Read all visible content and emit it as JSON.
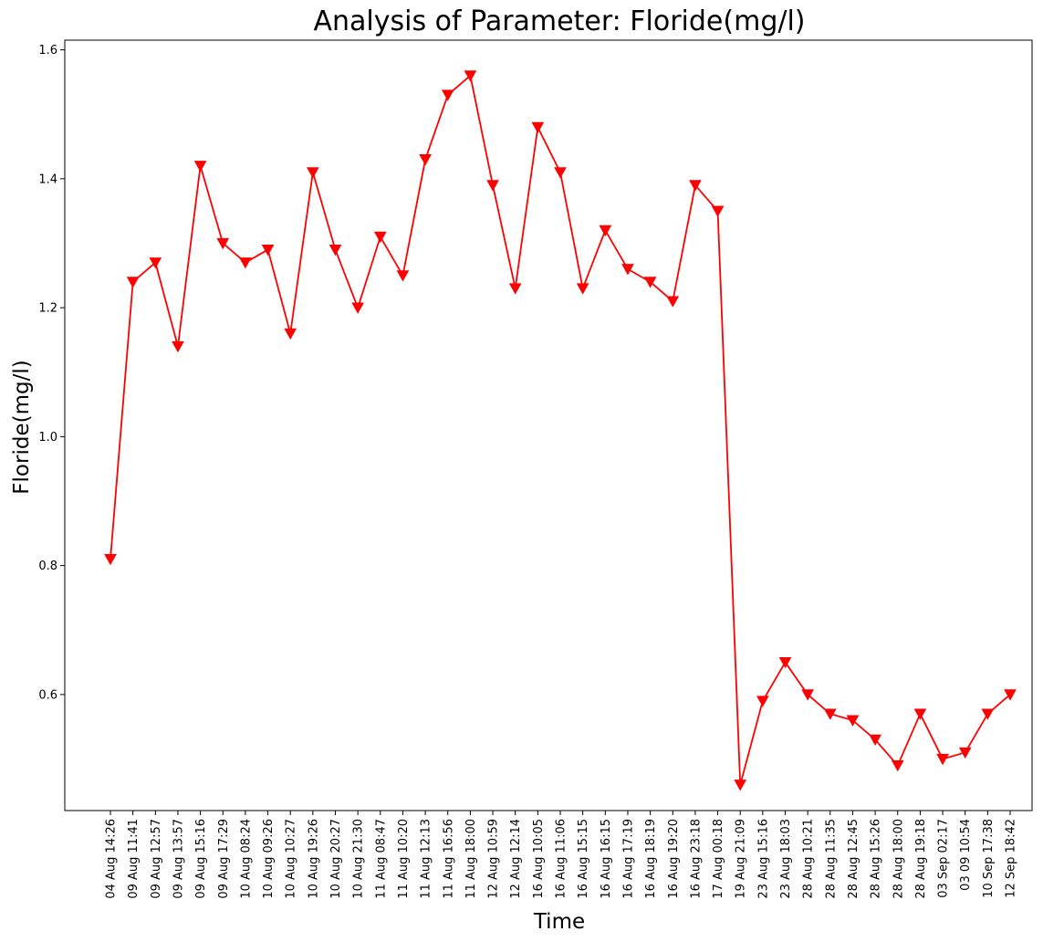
{
  "chart_data": {
    "type": "line",
    "title": "Analysis of Parameter: Floride(mg/l)",
    "xlabel": "Time",
    "ylabel": "Floride(mg/l)",
    "ylim": [
      0.42,
      1.615
    ],
    "yticks": [
      "0.6",
      "0.8",
      "1.0",
      "1.2",
      "1.4",
      "1.6"
    ],
    "grid": false,
    "legend": "none",
    "series_color": "#ff0000",
    "marker": "triangle-down",
    "categories": [
      "04 Aug 14:26",
      "09 Aug 11:41",
      "09 Aug 12:57",
      "09 Aug 13:57",
      "09 Aug 15:16",
      "09 Aug 17:29",
      "10 Aug 08:24",
      "10 Aug 09:26",
      "10 Aug 10:27",
      "10 Aug 19:26",
      "10 Aug 20:27",
      "10 Aug 21:30",
      "11 Aug 08:47",
      "11 Aug 10:20",
      "11 Aug 12:13",
      "11 Aug 16:56",
      "11 Aug 18:00",
      "12 Aug 10:59",
      "12 Aug 12:14",
      "16 Aug 10:05",
      "16 Aug 11:06",
      "16 Aug 15:15",
      "16 Aug 16:15",
      "16 Aug 17:19",
      "16 Aug 18:19",
      "16 Aug 19:20",
      "16 Aug 23:18",
      "17 Aug 00:18",
      "19 Aug 21:09",
      "23 Aug 15:16",
      "23 Aug 18:03",
      "28 Aug 10:21",
      "28 Aug 11:35",
      "28 Aug 12:45",
      "28 Aug 15:26",
      "28 Aug 18:00",
      "28 Aug 19:18",
      "03 Sep 02:17",
      "03 09 10:54",
      "10 Sep 17:38",
      "12 Sep 18:42"
    ],
    "series": [
      {
        "values": [
          0.81,
          1.24,
          1.27,
          1.14,
          1.42,
          1.3,
          1.27,
          1.29,
          1.16,
          1.41,
          1.29,
          1.2,
          1.31,
          1.25,
          1.43,
          1.53,
          1.56,
          1.39,
          1.23,
          1.48,
          1.41,
          1.23,
          1.32,
          1.26,
          1.24,
          1.21,
          1.39,
          1.35,
          0.46,
          0.59,
          0.65,
          0.6,
          0.57,
          0.56,
          0.53,
          0.49,
          0.57,
          0.5,
          0.51,
          0.57,
          0.6
        ]
      }
    ]
  }
}
